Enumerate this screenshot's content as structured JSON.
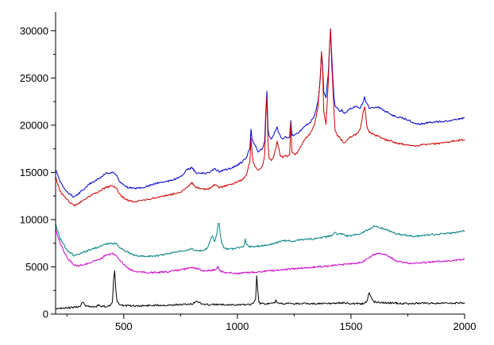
{
  "chart_data": {
    "type": "line",
    "title": "",
    "xlabel": "",
    "ylabel": "",
    "xlim": [
      200,
      2000
    ],
    "ylim": [
      0,
      32000
    ],
    "xticks": [
      500,
      1000,
      1500,
      2000
    ],
    "yticks": [
      0,
      5000,
      10000,
      15000,
      20000,
      25000,
      30000
    ],
    "xtick_labels": [
      "500",
      "1000",
      "1500",
      "2000"
    ],
    "ytick_labels": [
      "0",
      "5000",
      "10000",
      "15000",
      "20000",
      "25000",
      "30000"
    ],
    "grid": false,
    "legend": "none",
    "series": [
      {
        "color": "#0000cc",
        "x": [
          200,
          220,
          250,
          280,
          300,
          350,
          400,
          420,
          450,
          470,
          480,
          500,
          520,
          550,
          600,
          650,
          700,
          750,
          780,
          800,
          820,
          850,
          880,
          900,
          920,
          950,
          980,
          1000,
          1020,
          1040,
          1055,
          1060,
          1065,
          1070,
          1080,
          1090,
          1100,
          1110,
          1120,
          1125,
          1130,
          1135,
          1140,
          1150,
          1160,
          1170,
          1175,
          1180,
          1190,
          1200,
          1210,
          1220,
          1230,
          1235,
          1240,
          1250,
          1260,
          1270,
          1280,
          1290,
          1300,
          1320,
          1340,
          1355,
          1365,
          1370,
          1375,
          1380,
          1390,
          1400,
          1405,
          1410,
          1415,
          1420,
          1425,
          1430,
          1440,
          1450,
          1460,
          1470,
          1480,
          1490,
          1500,
          1520,
          1540,
          1555,
          1560,
          1565,
          1570,
          1580,
          1600,
          1620,
          1650,
          1680,
          1700,
          1750,
          1780,
          1800,
          1850,
          1900,
          1950,
          2000
        ],
        "y": [
          15300,
          14000,
          12900,
          12400,
          12700,
          13800,
          14500,
          14900,
          15000,
          14700,
          14000,
          13700,
          13400,
          13300,
          13500,
          13900,
          14100,
          14500,
          15300,
          15500,
          14900,
          14900,
          15000,
          15400,
          15100,
          15300,
          15500,
          15800,
          16100,
          16600,
          17600,
          19500,
          18500,
          18200,
          17800,
          17200,
          17400,
          17500,
          18200,
          21500,
          23600,
          19500,
          18800,
          18500,
          19000,
          19600,
          19800,
          19300,
          18800,
          18600,
          18800,
          18700,
          18800,
          20500,
          19000,
          18900,
          19100,
          19200,
          19500,
          19800,
          20000,
          20300,
          21000,
          22500,
          25000,
          27500,
          26500,
          23500,
          23000,
          25500,
          28000,
          30300,
          27500,
          25000,
          23000,
          22100,
          21800,
          21500,
          21600,
          21300,
          21400,
          21600,
          21800,
          22000,
          21800,
          22500,
          23000,
          22500,
          22300,
          21800,
          21800,
          21900,
          21500,
          21100,
          20900,
          20600,
          20200,
          20100,
          20300,
          20400,
          20500,
          20800
        ]
      },
      {
        "color": "#cc0000",
        "x": [
          200,
          220,
          250,
          280,
          300,
          350,
          400,
          420,
          450,
          470,
          480,
          500,
          520,
          550,
          600,
          650,
          700,
          750,
          780,
          800,
          820,
          850,
          880,
          900,
          920,
          950,
          980,
          1000,
          1020,
          1040,
          1055,
          1060,
          1065,
          1070,
          1080,
          1090,
          1100,
          1110,
          1120,
          1125,
          1130,
          1135,
          1140,
          1150,
          1160,
          1170,
          1175,
          1180,
          1190,
          1200,
          1210,
          1220,
          1230,
          1235,
          1240,
          1250,
          1260,
          1270,
          1280,
          1290,
          1300,
          1320,
          1340,
          1355,
          1365,
          1370,
          1375,
          1380,
          1390,
          1400,
          1405,
          1410,
          1415,
          1420,
          1425,
          1430,
          1440,
          1450,
          1460,
          1470,
          1480,
          1490,
          1500,
          1520,
          1540,
          1555,
          1560,
          1565,
          1570,
          1580,
          1600,
          1620,
          1650,
          1680,
          1700,
          1750,
          1780,
          1800,
          1850,
          1900,
          1950,
          2000
        ],
        "y": [
          14500,
          13000,
          12100,
          11500,
          11700,
          12500,
          13100,
          13400,
          13600,
          13300,
          12700,
          12300,
          12000,
          11900,
          12100,
          12400,
          12600,
          12900,
          13500,
          13900,
          13400,
          13200,
          13300,
          13700,
          13400,
          13600,
          13800,
          14000,
          14200,
          14700,
          16200,
          18500,
          17000,
          16000,
          15500,
          15200,
          15300,
          15700,
          16800,
          20800,
          23000,
          18000,
          16400,
          16300,
          16700,
          17600,
          18300,
          17800,
          16700,
          16600,
          16800,
          16700,
          16800,
          20300,
          17200,
          16900,
          17000,
          17300,
          17800,
          18200,
          18600,
          19100,
          20100,
          22000,
          25200,
          27800,
          26000,
          21500,
          20100,
          24500,
          28000,
          30200,
          26500,
          24000,
          21500,
          19500,
          18900,
          18700,
          18400,
          18100,
          18300,
          18600,
          18800,
          19000,
          19500,
          21500,
          22000,
          21000,
          19800,
          19300,
          19000,
          18800,
          18500,
          18300,
          18100,
          17900,
          17800,
          17900,
          18000,
          18100,
          18300,
          18500
        ]
      },
      {
        "color": "#008080",
        "x": [
          200,
          220,
          250,
          280,
          300,
          350,
          400,
          420,
          450,
          470,
          480,
          500,
          520,
          550,
          600,
          650,
          700,
          750,
          780,
          800,
          820,
          850,
          870,
          880,
          890,
          900,
          910,
          915,
          920,
          925,
          930,
          940,
          950,
          980,
          1000,
          1020,
          1030,
          1035,
          1040,
          1050,
          1070,
          1080,
          1100,
          1150,
          1200,
          1220,
          1240,
          1260,
          1280,
          1300,
          1350,
          1400,
          1420,
          1430,
          1440,
          1460,
          1480,
          1500,
          1550,
          1580,
          1600,
          1620,
          1650,
          1680,
          1700,
          1750,
          1780,
          1800,
          1850,
          1900,
          1950,
          2000
        ],
        "y": [
          9500,
          8000,
          6800,
          6200,
          6300,
          6800,
          7200,
          7400,
          7500,
          7400,
          7100,
          6800,
          6500,
          6200,
          6100,
          6200,
          6400,
          6700,
          6800,
          6900,
          6700,
          6700,
          7000,
          7800,
          8300,
          7600,
          8500,
          9500,
          9600,
          8400,
          7600,
          7000,
          6900,
          6900,
          7000,
          7100,
          7300,
          7900,
          7400,
          7200,
          7100,
          7200,
          7200,
          7400,
          7800,
          7800,
          7700,
          7800,
          7900,
          7900,
          8000,
          8200,
          8400,
          8600,
          8400,
          8500,
          8300,
          8300,
          8600,
          9000,
          9300,
          9200,
          9000,
          8700,
          8500,
          8300,
          8200,
          8300,
          8400,
          8500,
          8600,
          8800
        ]
      },
      {
        "color": "#cc00cc",
        "x": [
          200,
          220,
          250,
          280,
          300,
          350,
          400,
          420,
          450,
          470,
          480,
          500,
          520,
          550,
          600,
          650,
          700,
          750,
          780,
          800,
          820,
          850,
          880,
          900,
          915,
          920,
          930,
          950,
          1000,
          1050,
          1100,
          1150,
          1200,
          1250,
          1300,
          1350,
          1400,
          1450,
          1500,
          1550,
          1580,
          1600,
          1620,
          1640,
          1660,
          1680,
          1700,
          1750,
          1780,
          1800,
          1850,
          1900,
          1950,
          2000
        ],
        "y": [
          9000,
          7500,
          6000,
          5200,
          5100,
          5400,
          5900,
          6200,
          6400,
          6200,
          5800,
          5300,
          4800,
          4500,
          4400,
          4400,
          4500,
          4700,
          4800,
          5000,
          4800,
          4600,
          4600,
          4700,
          5000,
          4700,
          4500,
          4400,
          4300,
          4400,
          4500,
          4600,
          4700,
          4800,
          4900,
          5000,
          5100,
          5200,
          5300,
          5500,
          6000,
          6300,
          6500,
          6400,
          6200,
          5900,
          5600,
          5400,
          5400,
          5400,
          5500,
          5600,
          5700,
          5800
        ]
      },
      {
        "color": "#000000",
        "x": [
          200,
          250,
          300,
          310,
          320,
          330,
          350,
          380,
          390,
          400,
          420,
          440,
          450,
          455,
          460,
          465,
          470,
          480,
          500,
          550,
          600,
          650,
          700,
          750,
          800,
          820,
          840,
          860,
          900,
          950,
          1000,
          1050,
          1070,
          1080,
          1085,
          1090,
          1095,
          1100,
          1150,
          1165,
          1170,
          1175,
          1200,
          1250,
          1300,
          1350,
          1400,
          1450,
          1500,
          1550,
          1570,
          1580,
          1590,
          1600,
          1650,
          1700,
          1750,
          1800,
          1850,
          1900,
          1950,
          2000
        ],
        "y": [
          600,
          650,
          750,
          900,
          1300,
          900,
          800,
          800,
          1000,
          800,
          800,
          900,
          1300,
          3500,
          4600,
          2500,
          1400,
          1000,
          900,
          850,
          900,
          950,
          950,
          1000,
          1050,
          1400,
          1100,
          1000,
          1000,
          1000,
          1000,
          1000,
          1100,
          1500,
          4000,
          2500,
          1300,
          1100,
          1100,
          1200,
          1500,
          1200,
          1100,
          1100,
          1100,
          1100,
          1100,
          1200,
          1100,
          1100,
          1300,
          2300,
          1700,
          1300,
          1200,
          1150,
          1100,
          1150,
          1150,
          1150,
          1150,
          1200
        ]
      }
    ]
  }
}
